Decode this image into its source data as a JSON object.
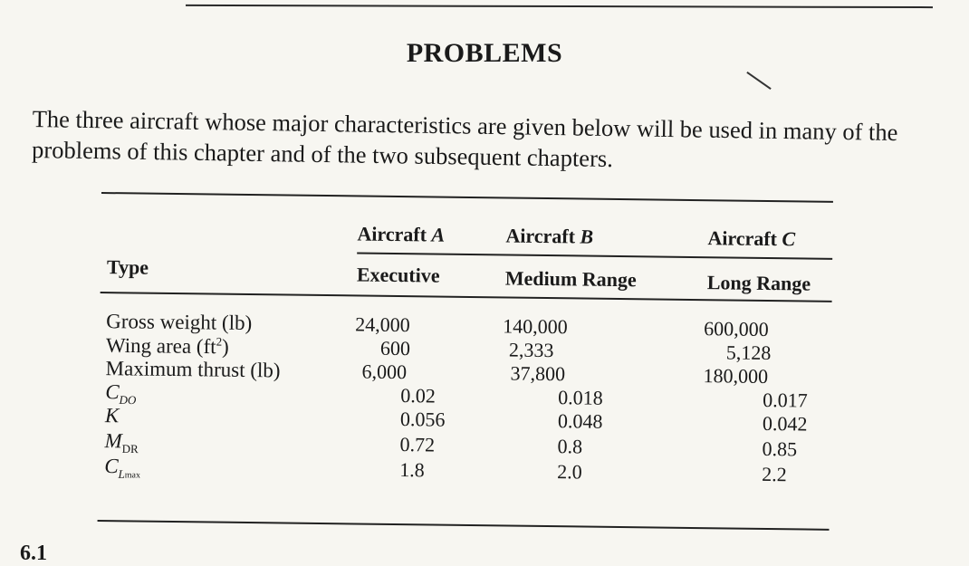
{
  "heading": "PROBLEMS",
  "intro": "The three aircraft whose major characteristics are given below will be used in many of the problems of this chapter and of the two subsequent chapters.",
  "table": {
    "type_label": "Type",
    "columns": [
      {
        "name_prefix": "Aircraft ",
        "name_letter": "A",
        "type": "Executive"
      },
      {
        "name_prefix": "Aircraft ",
        "name_letter": "B",
        "type": "Medium Range"
      },
      {
        "name_prefix": "Aircraft ",
        "name_letter": "C",
        "type": "Long Range"
      }
    ],
    "rows": {
      "gross_weight": {
        "label": "Gross weight (lb)",
        "values": [
          "24,000",
          "140,000",
          "600,000"
        ]
      },
      "wing_area": {
        "label_main": "Wing area (ft",
        "label_sup": "2",
        "label_end": ")",
        "values": [
          "600",
          "2,333",
          "5,128"
        ]
      },
      "max_thrust": {
        "label": "Maximum thrust (lb)",
        "values": [
          "6,000",
          "37,800",
          "180,000"
        ]
      },
      "cdo": {
        "label_main": "C",
        "label_sub": "DO",
        "values": [
          "0.02",
          "0.018",
          "0.017"
        ]
      },
      "k": {
        "label": "K",
        "values": [
          "0.056",
          "0.048",
          "0.042"
        ]
      },
      "mdr": {
        "label_main": "M",
        "label_sub": "DR",
        "values": [
          "0.72",
          "0.8",
          "0.85"
        ]
      },
      "clmax": {
        "label_main": "C",
        "label_sub": "L",
        "label_sub2": "max",
        "values": [
          "1.8",
          "2.0",
          "2.2"
        ]
      }
    }
  },
  "footer_fragment": "6.1"
}
